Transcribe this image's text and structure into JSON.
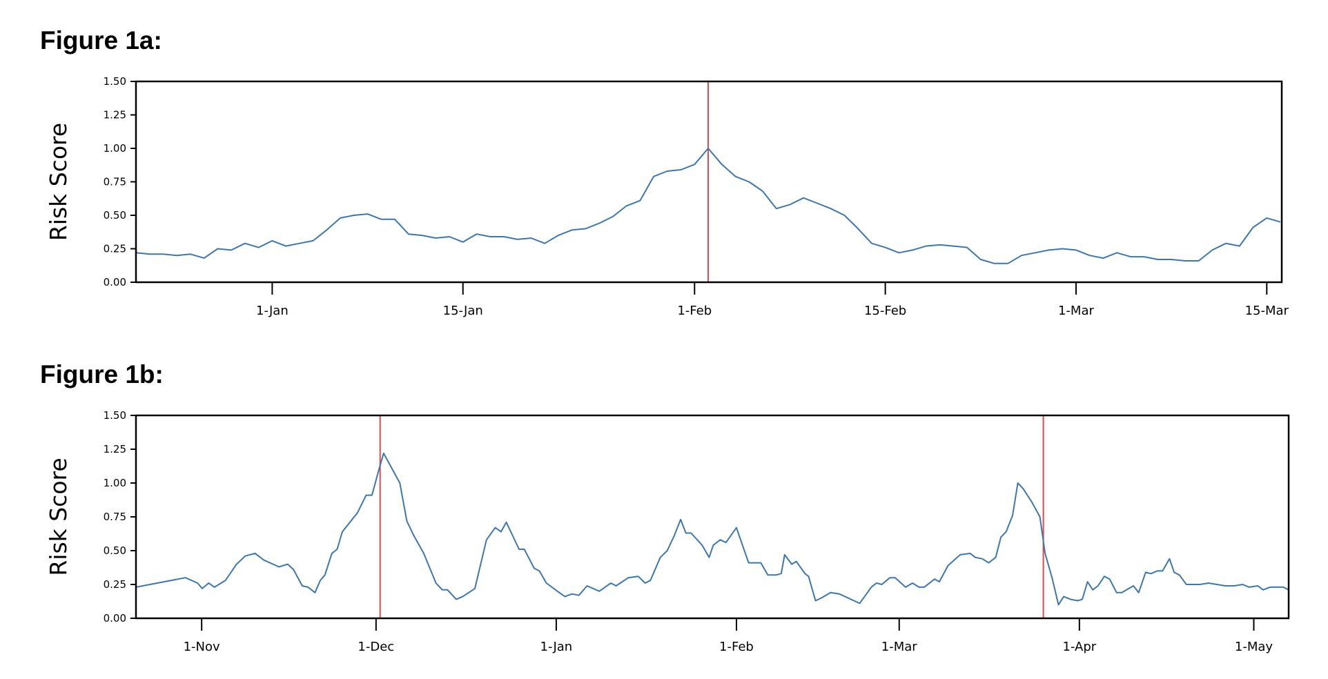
{
  "chart_data": [
    {
      "type": "line",
      "title": "Figure 1a:",
      "xlabel": "",
      "ylabel": "Risk Score",
      "x_unit": "days since 1-Jan",
      "xlim": [
        -10,
        74.1
      ],
      "ylim": [
        0,
        1.5
      ],
      "yticks": [
        0,
        0.25,
        0.5,
        0.75,
        1.0,
        1.25,
        1.5
      ],
      "ytick_labels": [
        "0.00",
        "0.25",
        "0.50",
        "0.75",
        "1.00",
        "1.25",
        "1.50"
      ],
      "xticks": [
        0,
        14,
        31,
        45,
        59,
        73
      ],
      "xtick_labels": [
        "1-Jan",
        "15-Jan",
        "1-Feb",
        "15-Feb",
        "1-Mar",
        "15-Mar"
      ],
      "vlines": [
        32
      ],
      "series": [
        {
          "name": "Risk Score",
          "color": "#3b76b0",
          "x": [
            -10,
            -9,
            -8,
            -7,
            -6,
            -5,
            -4,
            -3,
            -2,
            -1,
            0,
            1,
            2,
            3,
            4,
            5,
            6,
            7,
            8,
            9,
            10,
            11,
            12,
            13,
            14,
            15,
            16,
            17,
            18,
            19,
            20,
            21,
            22,
            23,
            24,
            25,
            26,
            27,
            28,
            29,
            30,
            31,
            32,
            33,
            34,
            35,
            36,
            37,
            38,
            39,
            40,
            41,
            42,
            43,
            44,
            45,
            46,
            47,
            48,
            49,
            50,
            51,
            52,
            53,
            54,
            55,
            56,
            57,
            58,
            59,
            60,
            61,
            62,
            63,
            64,
            65,
            66,
            67,
            68,
            69,
            70,
            71,
            72,
            73,
            74
          ],
          "values": [
            0.22,
            0.21,
            0.21,
            0.2,
            0.21,
            0.18,
            0.25,
            0.24,
            0.29,
            0.26,
            0.31,
            0.27,
            0.29,
            0.31,
            0.39,
            0.48,
            0.5,
            0.51,
            0.47,
            0.47,
            0.36,
            0.35,
            0.33,
            0.34,
            0.3,
            0.36,
            0.34,
            0.34,
            0.32,
            0.33,
            0.29,
            0.35,
            0.39,
            0.4,
            0.44,
            0.49,
            0.57,
            0.61,
            0.79,
            0.83,
            0.84,
            0.88,
            1.0,
            0.88,
            0.79,
            0.75,
            0.68,
            0.55,
            0.58,
            0.63,
            0.59,
            0.55,
            0.5,
            0.4,
            0.29,
            0.26,
            0.22,
            0.24,
            0.27,
            0.28,
            0.27,
            0.26,
            0.17,
            0.14,
            0.14,
            0.2,
            0.22,
            0.24,
            0.25,
            0.24,
            0.2,
            0.18,
            0.22,
            0.19,
            0.19,
            0.17,
            0.17,
            0.16,
            0.16,
            0.24,
            0.29,
            0.27,
            0.41,
            0.48,
            0.45
          ]
        }
      ],
      "vline_color": "#e8474a",
      "grid": false
    },
    {
      "type": "line",
      "title": "Figure 1b:",
      "xlabel": "",
      "ylabel": "Risk Score",
      "x_unit": "days since 1-Nov",
      "xlim": [
        -11.3,
        187
      ],
      "ylim": [
        0,
        1.5
      ],
      "yticks": [
        0,
        0.25,
        0.5,
        0.75,
        1.0,
        1.25,
        1.5
      ],
      "ytick_labels": [
        "0.00",
        "0.25",
        "0.50",
        "0.75",
        "1.00",
        "1.25",
        "1.50"
      ],
      "xticks": [
        0,
        30,
        61,
        92,
        120,
        151,
        181
      ],
      "xtick_labels": [
        "1-Nov",
        "1-Dec",
        "1-Jan",
        "1-Feb",
        "1-Mar",
        "1-Apr",
        "1-May"
      ],
      "vlines": [
        30.7,
        144.8
      ],
      "series": [
        {
          "name": "Risk Score",
          "color": "#3b76b0",
          "x": [
            -11.3,
            -2.8,
            -0.7,
            0.1,
            1.2,
            2.2,
            4.1,
            6.0,
            7.5,
            9.2,
            10.7,
            13.3,
            14.8,
            15.8,
            17.3,
            18.3,
            19.5,
            20.4,
            21.2,
            22.4,
            23.3,
            24.2,
            26.8,
            28.3,
            29.3,
            30.5,
            31.3,
            34.1,
            35.3,
            36.5,
            38.2,
            40.3,
            41.4,
            42.3,
            43.8,
            44.9,
            47.0,
            49.0,
            50.5,
            51.5,
            52.4,
            53.4,
            54.6,
            55.5,
            57.2,
            58.1,
            59.3,
            61.2,
            62.5,
            63.7,
            64.9,
            66.3,
            68.4,
            70.4,
            71.3,
            73.4,
            75.1,
            76.3,
            77.2,
            78.9,
            80.1,
            81.3,
            82.4,
            83.3,
            84.2,
            86.1,
            87.3,
            88.0,
            89.2,
            90.2,
            92.0,
            94.1,
            96.2,
            97.4,
            98.8,
            99.7,
            100.3,
            101.5,
            102.3,
            103.8,
            104.4,
            105.6,
            106.6,
            108.2,
            109.7,
            113.2,
            115.2,
            116.1,
            117.0,
            118.4,
            119.3,
            121.1,
            122.3,
            123.4,
            124.3,
            126.1,
            126.9,
            128.4,
            130.5,
            132.2,
            133.1,
            134.3,
            135.4,
            136.6,
            137.5,
            138.4,
            139.5,
            140.4,
            141.3,
            142.8,
            144.2,
            145.1,
            146.3,
            147.4,
            148.3,
            149.5,
            150.7,
            151.5,
            152.4,
            153.3,
            154.2,
            155.3,
            156.2,
            157.4,
            158.3,
            160.3,
            161.2,
            162.4,
            163.3,
            164.4,
            165.3,
            166.5,
            167.3,
            168.2,
            169.4,
            171.7,
            173.2,
            176.1,
            177.6,
            179.1,
            180.2,
            181.7,
            182.6,
            183.8,
            185.0,
            186.1,
            187.0
          ],
          "values": [
            0.23,
            0.3,
            0.26,
            0.22,
            0.26,
            0.23,
            0.28,
            0.4,
            0.46,
            0.48,
            0.43,
            0.38,
            0.4,
            0.36,
            0.24,
            0.23,
            0.19,
            0.28,
            0.32,
            0.48,
            0.51,
            0.64,
            0.78,
            0.91,
            0.91,
            1.1,
            1.22,
            1.0,
            0.72,
            0.61,
            0.48,
            0.26,
            0.21,
            0.21,
            0.14,
            0.16,
            0.22,
            0.58,
            0.67,
            0.64,
            0.71,
            0.62,
            0.51,
            0.51,
            0.37,
            0.35,
            0.26,
            0.2,
            0.16,
            0.18,
            0.17,
            0.24,
            0.2,
            0.26,
            0.24,
            0.3,
            0.31,
            0.26,
            0.28,
            0.45,
            0.5,
            0.61,
            0.73,
            0.63,
            0.63,
            0.54,
            0.45,
            0.54,
            0.58,
            0.56,
            0.67,
            0.41,
            0.41,
            0.32,
            0.32,
            0.33,
            0.47,
            0.4,
            0.42,
            0.33,
            0.31,
            0.13,
            0.15,
            0.19,
            0.18,
            0.11,
            0.23,
            0.26,
            0.25,
            0.3,
            0.3,
            0.23,
            0.26,
            0.23,
            0.23,
            0.29,
            0.27,
            0.39,
            0.47,
            0.48,
            0.45,
            0.44,
            0.41,
            0.45,
            0.6,
            0.64,
            0.76,
            1.0,
            0.96,
            0.86,
            0.75,
            0.48,
            0.3,
            0.1,
            0.16,
            0.14,
            0.13,
            0.14,
            0.27,
            0.21,
            0.24,
            0.31,
            0.29,
            0.19,
            0.19,
            0.24,
            0.19,
            0.34,
            0.33,
            0.35,
            0.35,
            0.44,
            0.34,
            0.32,
            0.25,
            0.25,
            0.26,
            0.24,
            0.24,
            0.25,
            0.23,
            0.24,
            0.21,
            0.23,
            0.23,
            0.23,
            0.21
          ]
        }
      ],
      "vline_color": "#e8474a",
      "grid": false
    }
  ]
}
